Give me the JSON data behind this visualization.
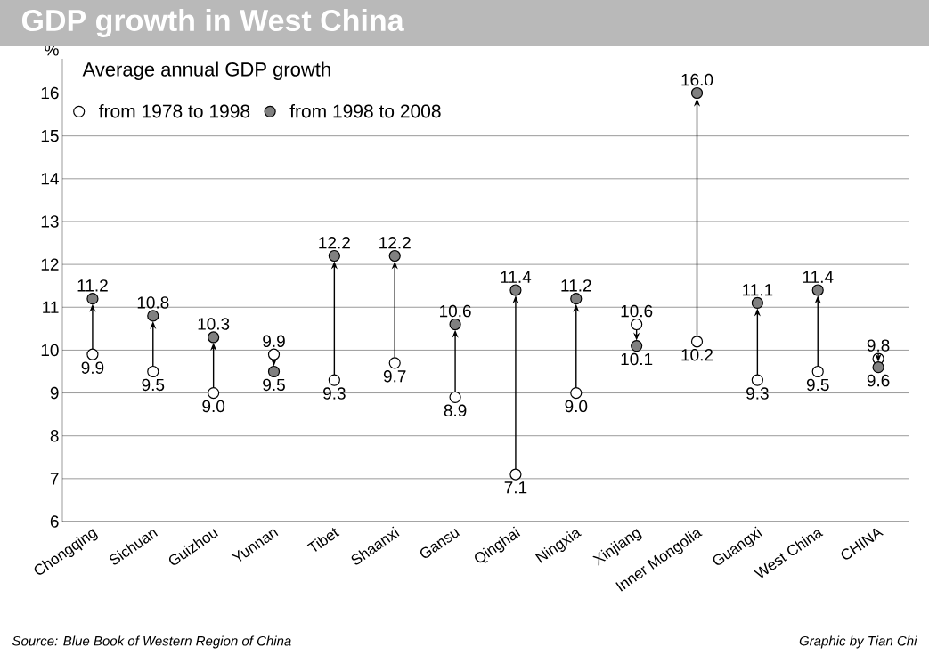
{
  "chart_data": {
    "type": "scatter",
    "title": "GDP growth in West China",
    "subtitle": "Average annual GDP growth",
    "ylabel": "%",
    "categories": [
      "Chongqing",
      "Sichuan",
      "Guizhou",
      "Yunnan",
      "Tibet",
      "Shaanxi",
      "Gansu",
      "Qinghai",
      "Ningxia",
      "Xinjiang",
      "Inner Mongolia",
      "Guangxi",
      "West China",
      "CHINA"
    ],
    "series": [
      {
        "name": "from 1978 to 1998",
        "color": "#ffffff",
        "values": [
          9.9,
          9.5,
          9.0,
          9.9,
          9.3,
          9.7,
          8.9,
          7.1,
          9.0,
          10.6,
          10.2,
          9.3,
          9.5,
          9.8
        ],
        "value_labels": [
          "9.9",
          "9.5",
          "9.0",
          "9.9",
          "9.3",
          "9.7",
          "8.9",
          "7.1",
          "9.0",
          "10.6",
          "10.2",
          "9.3",
          "9.5",
          "9.8"
        ]
      },
      {
        "name": "from 1998 to 2008",
        "color": "#808080",
        "values": [
          11.2,
          10.8,
          10.3,
          9.5,
          12.2,
          12.2,
          10.6,
          11.4,
          11.2,
          10.1,
          16.0,
          11.1,
          11.4,
          9.6
        ],
        "value_labels": [
          "11.2",
          "10.8",
          "10.3",
          "9.5",
          "12.2",
          "12.2",
          "10.6",
          "11.4",
          "11.2",
          "10.1",
          "16.0",
          "11.1",
          "11.4",
          "9.6"
        ]
      }
    ],
    "ylim": [
      6,
      16.8
    ],
    "yticks": [
      6,
      7,
      8,
      9,
      10,
      11,
      12,
      13,
      14,
      15,
      16
    ],
    "grid": "y",
    "legend": "top left",
    "annotations": [
      "Source: Blue Book of Western Region of China",
      "Graphic by Tian Chi"
    ]
  }
}
